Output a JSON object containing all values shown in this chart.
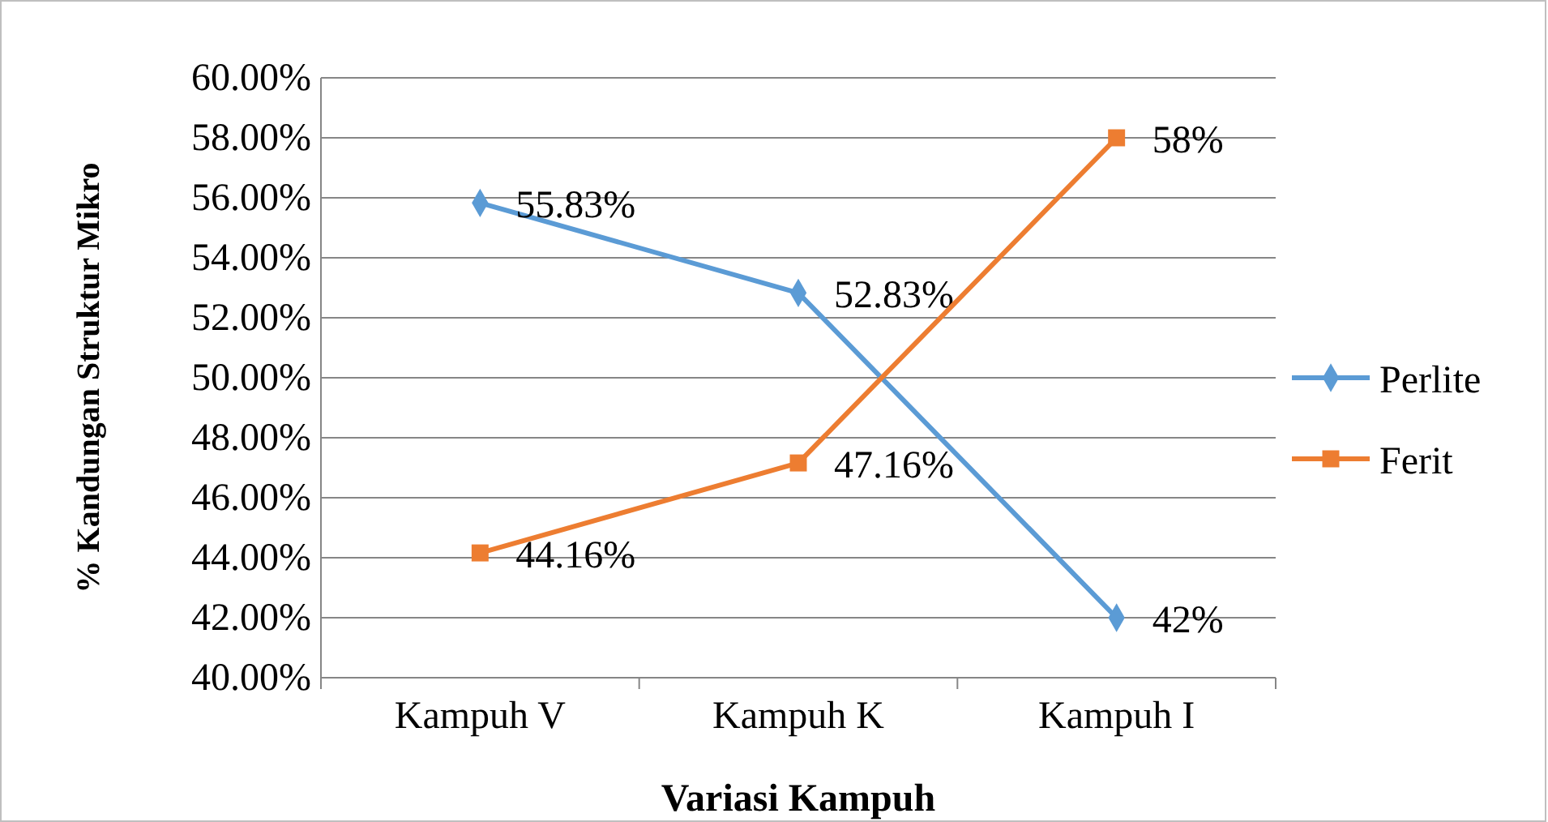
{
  "chart_data": {
    "type": "line",
    "xlabel": "Variasi Kampuh",
    "ylabel": "% Kandungan Struktur Mikro",
    "categories": [
      "Kampuh V",
      "Kampuh K",
      "Kampuh I"
    ],
    "series": [
      {
        "name": "Perlite",
        "color": "#5b9bd5",
        "marker": "diamond",
        "values": [
          55.83,
          52.83,
          42
        ],
        "value_labels": [
          "55.83%",
          "52.83%",
          "42%"
        ]
      },
      {
        "name": "Ferit",
        "color": "#ed7d31",
        "marker": "square",
        "values": [
          44.16,
          47.16,
          58
        ],
        "value_labels": [
          "44.16%",
          "47.16%",
          "58%"
        ]
      }
    ],
    "ylim": [
      40,
      60
    ],
    "yticks": [
      {
        "value": 40,
        "label": "40.00%"
      },
      {
        "value": 42,
        "label": "42.00%"
      },
      {
        "value": 44,
        "label": "44.00%"
      },
      {
        "value": 46,
        "label": "46.00%"
      },
      {
        "value": 48,
        "label": "48.00%"
      },
      {
        "value": 50,
        "label": "50.00%"
      },
      {
        "value": 52,
        "label": "52.00%"
      },
      {
        "value": 54,
        "label": "54.00%"
      },
      {
        "value": 56,
        "label": "56.00%"
      },
      {
        "value": 58,
        "label": "58.00%"
      },
      {
        "value": 60,
        "label": "60.00%"
      }
    ],
    "grid": "y",
    "legend": "right",
    "line_style": "solid"
  }
}
